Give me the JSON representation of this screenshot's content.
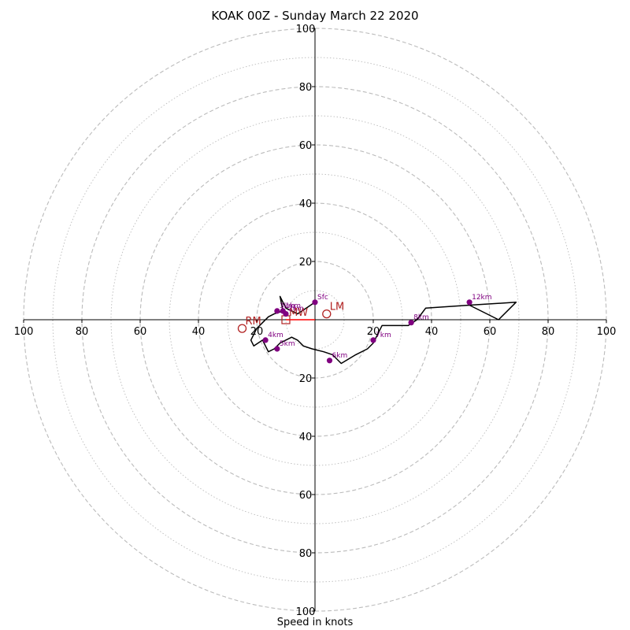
{
  "chart_data": {
    "type": "hodograph",
    "title": "KOAK 00Z - Sunday March 22 2020",
    "xlabel": "Speed in knots",
    "ring_max": 100,
    "ring_major_step": 20,
    "ring_minor_step": 10,
    "x_ticks": [
      {
        "value": -100,
        "label": "100"
      },
      {
        "value": -80,
        "label": "80"
      },
      {
        "value": -60,
        "label": "60"
      },
      {
        "value": -40,
        "label": "40"
      },
      {
        "value": -20,
        "label": "20"
      },
      {
        "value": 20,
        "label": "20"
      },
      {
        "value": 40,
        "label": "40"
      },
      {
        "value": 60,
        "label": "60"
      },
      {
        "value": 80,
        "label": "80"
      },
      {
        "value": 100,
        "label": "100"
      }
    ],
    "y_ticks": [
      {
        "value": 100,
        "label": "100"
      },
      {
        "value": 80,
        "label": "80"
      },
      {
        "value": 60,
        "label": "60"
      },
      {
        "value": 40,
        "label": "40"
      },
      {
        "value": 20,
        "label": "20"
      },
      {
        "value": -20,
        "label": "20"
      },
      {
        "value": -40,
        "label": "40"
      },
      {
        "value": -60,
        "label": "60"
      },
      {
        "value": -80,
        "label": "80"
      },
      {
        "value": -100,
        "label": "100"
      }
    ],
    "trace_color": "#000000",
    "trace": [
      [
        0,
        6
      ],
      [
        -3,
        4
      ],
      [
        -6,
        2
      ],
      [
        -10,
        4
      ],
      [
        -12,
        8
      ],
      [
        -11,
        3
      ],
      [
        -14,
        2
      ],
      [
        -16,
        1
      ],
      [
        -18,
        -1
      ],
      [
        -20,
        -3
      ],
      [
        -21,
        -5
      ],
      [
        -22,
        -7
      ],
      [
        -21,
        -9
      ],
      [
        -18,
        -7
      ],
      [
        -17,
        -9
      ],
      [
        -16,
        -11
      ],
      [
        -14,
        -10
      ],
      [
        -12,
        -8
      ],
      [
        -8,
        -6
      ],
      [
        -6,
        -7
      ],
      [
        -4,
        -9
      ],
      [
        -1,
        -10
      ],
      [
        3,
        -11
      ],
      [
        6,
        -12
      ],
      [
        9,
        -15
      ],
      [
        14,
        -12
      ],
      [
        18,
        -10
      ],
      [
        20,
        -8
      ],
      [
        22,
        -4
      ],
      [
        23,
        -2
      ],
      [
        26,
        -2
      ],
      [
        32,
        -2
      ],
      [
        35,
        0
      ],
      [
        38,
        4
      ],
      [
        53,
        5
      ],
      [
        69,
        6
      ],
      [
        63,
        0
      ],
      [
        53,
        5
      ]
    ],
    "height_marker_color": "#800080",
    "heights": [
      {
        "label": "Sfc",
        "u": 0,
        "v": 6
      },
      {
        "label": "1km",
        "u": -11,
        "v": 3
      },
      {
        "label": "2km",
        "u": -10,
        "v": 2
      },
      {
        "label": "3km",
        "u": -13,
        "v": 3
      },
      {
        "label": "4km",
        "u": -17,
        "v": -7
      },
      {
        "label": "5km",
        "u": -13,
        "v": -10
      },
      {
        "label": "6km",
        "u": 5,
        "v": -14
      },
      {
        "label": "7km",
        "u": 20,
        "v": -7
      },
      {
        "label": "8km",
        "u": 33,
        "v": -1
      },
      {
        "label": "12km",
        "u": 53,
        "v": 6
      }
    ],
    "motion_color": "#b22222",
    "storm_motion": [
      {
        "label": "LM",
        "u": 4,
        "v": 2
      },
      {
        "label": "RM",
        "u": -25,
        "v": -3
      },
      {
        "label": "MW",
        "u": -10,
        "v": 0
      }
    ],
    "shear_vector_color": "#ff0000",
    "shear_vector_from": [
      -10,
      0
    ],
    "shear_vector_to": [
      0,
      0
    ]
  }
}
